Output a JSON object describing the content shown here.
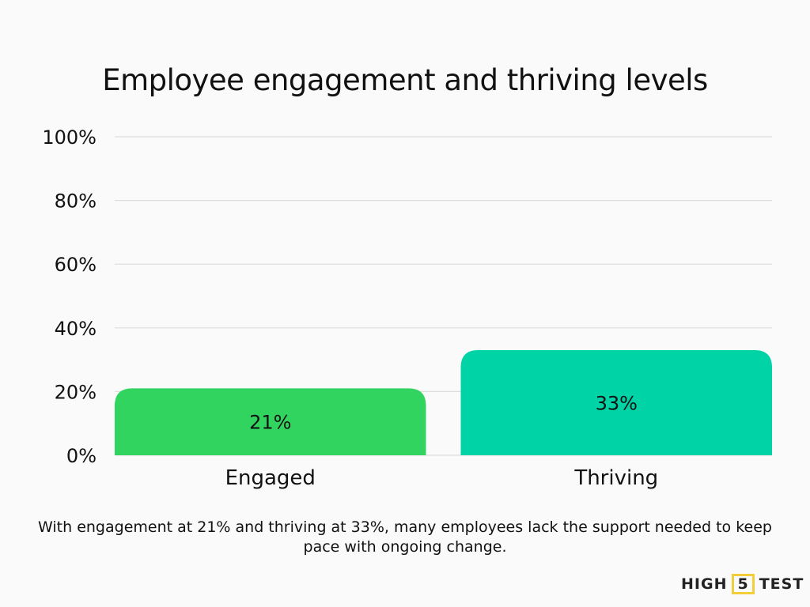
{
  "chart_data": {
    "type": "bar",
    "title": "Employee engagement and thriving levels",
    "categories": [
      "Engaged",
      "Thriving"
    ],
    "values": [
      21,
      33
    ],
    "data_labels": [
      "21%",
      "33%"
    ],
    "colors": [
      "#31d45f",
      "#00d4a6"
    ],
    "ylim": [
      0,
      100
    ],
    "yticks": [
      0,
      20,
      40,
      60,
      80,
      100
    ],
    "ytick_labels": [
      "0%",
      "20%",
      "40%",
      "60%",
      "80%",
      "100%"
    ],
    "grid": true,
    "xlabel": "",
    "ylabel": ""
  },
  "caption": "With engagement at 21% and thriving at 33%, many employees lack the support needed to keep pace with ongoing change.",
  "logo": {
    "left": "HIGH",
    "mid": "5",
    "right": "TEST"
  }
}
